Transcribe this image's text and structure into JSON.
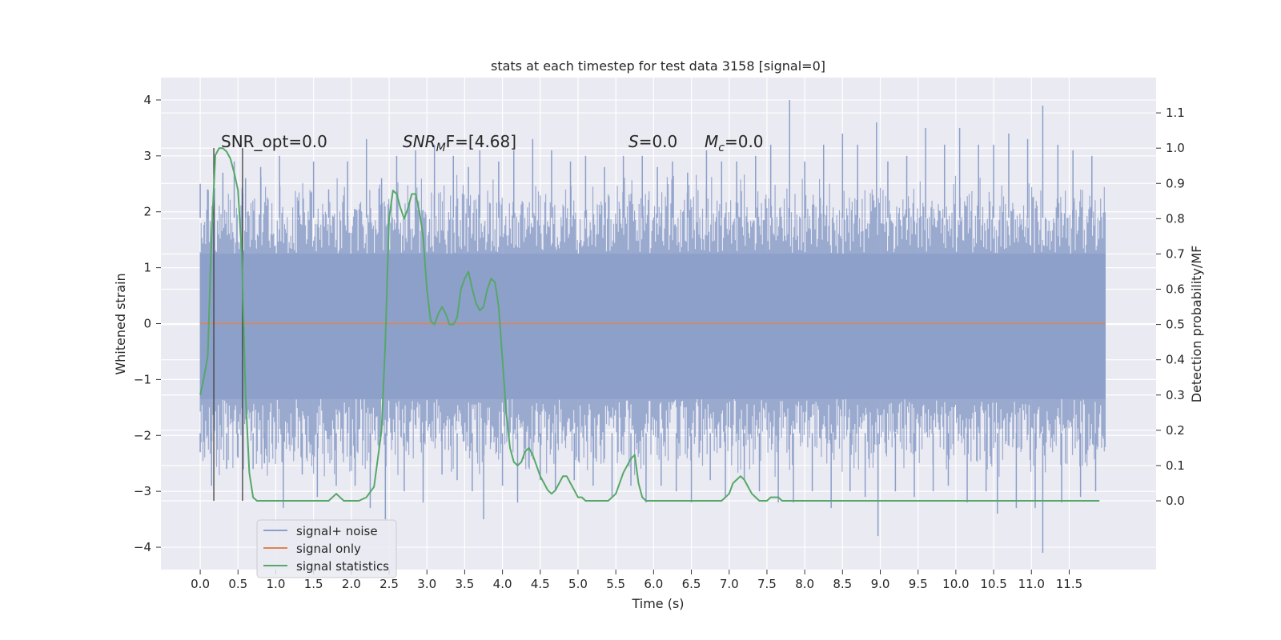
{
  "chart_data": {
    "type": "line",
    "title": "stats at each timestep for test data 3158 [signal=0]",
    "xlabel": "Time (s)",
    "ylabel": "Whitened strain",
    "y2label": "Detection probability/MF",
    "xlim": [
      -0.52,
      12.65
    ],
    "ylim": [
      -4.4,
      4.4
    ],
    "y2lim": [
      -0.195,
      1.2
    ],
    "grid": true,
    "legend_position": "lower-left",
    "x_ticks": [
      "0.0",
      "0.5",
      "1.0",
      "1.5",
      "2.0",
      "2.5",
      "3.0",
      "3.5",
      "4.0",
      "4.5",
      "5.0",
      "5.5",
      "6.0",
      "6.5",
      "7.0",
      "7.5",
      "8.0",
      "8.5",
      "9.0",
      "9.5",
      "10.0",
      "10.5",
      "11.0",
      "11.5"
    ],
    "y_ticks": [
      "4",
      "3",
      "2",
      "1",
      "0",
      "−1",
      "−2",
      "−3",
      "−4"
    ],
    "y2_ticks": [
      "1.1",
      "1.0",
      "0.9",
      "0.8",
      "0.7",
      "0.6",
      "0.5",
      "0.4",
      "0.3",
      "0.2",
      "0.1",
      "0.0"
    ],
    "annotations": {
      "snr_opt": "SNR_opt=0.0",
      "snr_mf_prefix": "SNR",
      "snr_mf_sub": "M",
      "snr_mf_suffix": "F=[4.68]",
      "s_label": "S",
      "s_value": "=0.0",
      "mc_label": "M",
      "mc_sub": "c",
      "mc_value": "=0.0"
    },
    "vertical_markers": [
      0.18,
      0.56
    ],
    "series": [
      {
        "name": "signal+ noise",
        "color": "#8c9fc9",
        "description_hidden": false,
        "envelope_core": [
          -1.35,
          1.25
        ],
        "envelope_typical": [
          -2.8,
          2.7
        ],
        "extremes": [
          {
            "x": 0.0,
            "y": 2.5
          },
          {
            "x": 0.0,
            "y": -2.3
          },
          {
            "x": 0.1,
            "y": 2.4
          },
          {
            "x": 0.15,
            "y": -2.9
          },
          {
            "x": 0.3,
            "y": 2.7
          },
          {
            "x": 0.35,
            "y": -2.6
          },
          {
            "x": 0.45,
            "y": 2.9
          },
          {
            "x": 0.5,
            "y": -2.4
          },
          {
            "x": 0.6,
            "y": 2.6
          },
          {
            "x": 0.7,
            "y": -2.6
          },
          {
            "x": 0.8,
            "y": 2.8
          },
          {
            "x": 0.85,
            "y": -2.5
          },
          {
            "x": 1.05,
            "y": 3.0
          },
          {
            "x": 1.1,
            "y": -3.3
          },
          {
            "x": 1.3,
            "y": 2.2
          },
          {
            "x": 1.35,
            "y": -2.7
          },
          {
            "x": 1.5,
            "y": 2.9
          },
          {
            "x": 1.55,
            "y": -3.1
          },
          {
            "x": 1.7,
            "y": 2.4
          },
          {
            "x": 1.8,
            "y": -2.9
          },
          {
            "x": 1.95,
            "y": 2.9
          },
          {
            "x": 2.05,
            "y": -2.9
          },
          {
            "x": 2.2,
            "y": 3.3
          },
          {
            "x": 2.25,
            "y": -3.3
          },
          {
            "x": 2.4,
            "y": 2.6
          },
          {
            "x": 2.45,
            "y": -3.5
          },
          {
            "x": 2.6,
            "y": 3.0
          },
          {
            "x": 2.7,
            "y": -3.0
          },
          {
            "x": 2.85,
            "y": 3.1
          },
          {
            "x": 2.95,
            "y": -3.2
          },
          {
            "x": 3.1,
            "y": 3.2
          },
          {
            "x": 3.2,
            "y": -2.7
          },
          {
            "x": 3.35,
            "y": 3.0
          },
          {
            "x": 3.4,
            "y": -2.8
          },
          {
            "x": 3.55,
            "y": 2.8
          },
          {
            "x": 3.6,
            "y": -3.0
          },
          {
            "x": 3.7,
            "y": 3.1
          },
          {
            "x": 3.75,
            "y": -3.5
          },
          {
            "x": 3.95,
            "y": 2.9
          },
          {
            "x": 4.0,
            "y": -2.9
          },
          {
            "x": 4.15,
            "y": 3.1
          },
          {
            "x": 4.2,
            "y": -3.2
          },
          {
            "x": 4.4,
            "y": 3.3
          },
          {
            "x": 4.5,
            "y": -2.8
          },
          {
            "x": 4.65,
            "y": 3.1
          },
          {
            "x": 4.7,
            "y": -3.0
          },
          {
            "x": 4.9,
            "y": 2.9
          },
          {
            "x": 4.95,
            "y": -2.8
          },
          {
            "x": 5.1,
            "y": 3.0
          },
          {
            "x": 5.2,
            "y": -2.9
          },
          {
            "x": 5.35,
            "y": 2.8
          },
          {
            "x": 5.45,
            "y": -3.1
          },
          {
            "x": 5.6,
            "y": 3.0
          },
          {
            "x": 5.7,
            "y": -2.9
          },
          {
            "x": 5.85,
            "y": 3.0
          },
          {
            "x": 5.9,
            "y": -3.2
          },
          {
            "x": 6.05,
            "y": 2.8
          },
          {
            "x": 6.1,
            "y": -2.9
          },
          {
            "x": 6.25,
            "y": 2.9
          },
          {
            "x": 6.3,
            "y": -3.0
          },
          {
            "x": 6.45,
            "y": 2.7
          },
          {
            "x": 6.5,
            "y": -3.2
          },
          {
            "x": 6.7,
            "y": 3.1
          },
          {
            "x": 6.75,
            "y": -2.8
          },
          {
            "x": 6.9,
            "y": 2.9
          },
          {
            "x": 6.95,
            "y": -3.1
          },
          {
            "x": 7.1,
            "y": 2.9
          },
          {
            "x": 7.2,
            "y": -2.8
          },
          {
            "x": 7.35,
            "y": 3.0
          },
          {
            "x": 7.4,
            "y": -3.0
          },
          {
            "x": 7.55,
            "y": 3.2
          },
          {
            "x": 7.65,
            "y": -3.2
          },
          {
            "x": 7.8,
            "y": 4.0
          },
          {
            "x": 7.85,
            "y": -3.2
          },
          {
            "x": 8.0,
            "y": 2.9
          },
          {
            "x": 8.1,
            "y": -3.0
          },
          {
            "x": 8.25,
            "y": 3.2
          },
          {
            "x": 8.35,
            "y": -3.3
          },
          {
            "x": 8.5,
            "y": 3.4
          },
          {
            "x": 8.6,
            "y": -3.0
          },
          {
            "x": 8.7,
            "y": 3.2
          },
          {
            "x": 8.8,
            "y": -3.1
          },
          {
            "x": 8.95,
            "y": 3.6
          },
          {
            "x": 8.97,
            "y": -3.8
          },
          {
            "x": 9.1,
            "y": 2.9
          },
          {
            "x": 9.2,
            "y": -3.0
          },
          {
            "x": 9.35,
            "y": 3.0
          },
          {
            "x": 9.45,
            "y": -3.1
          },
          {
            "x": 9.6,
            "y": 3.5
          },
          {
            "x": 9.7,
            "y": -3.0
          },
          {
            "x": 9.85,
            "y": 3.2
          },
          {
            "x": 9.9,
            "y": -2.9
          },
          {
            "x": 10.05,
            "y": 3.5
          },
          {
            "x": 10.15,
            "y": -3.2
          },
          {
            "x": 10.3,
            "y": 3.2
          },
          {
            "x": 10.4,
            "y": -3.0
          },
          {
            "x": 10.5,
            "y": 3.2
          },
          {
            "x": 10.55,
            "y": -3.4
          },
          {
            "x": 10.7,
            "y": 3.4
          },
          {
            "x": 10.8,
            "y": -3.3
          },
          {
            "x": 10.95,
            "y": 3.3
          },
          {
            "x": 11.05,
            "y": -3.3
          },
          {
            "x": 11.15,
            "y": 3.9
          },
          {
            "x": 11.15,
            "y": -4.1
          },
          {
            "x": 11.35,
            "y": 3.2
          },
          {
            "x": 11.4,
            "y": -3.2
          },
          {
            "x": 11.55,
            "y": 3.1
          },
          {
            "x": 11.65,
            "y": -3.1
          },
          {
            "x": 11.8,
            "y": 3.0
          },
          {
            "x": 11.85,
            "y": -3.0
          }
        ]
      },
      {
        "name": "signal only",
        "color": "#dd8452",
        "x": [
          0.0,
          11.98
        ],
        "y": [
          0.0,
          0.0
        ]
      },
      {
        "name": "signal statistics",
        "color": "#55a868",
        "axis": "right",
        "x": [
          0.0,
          0.05,
          0.1,
          0.15,
          0.2,
          0.25,
          0.3,
          0.35,
          0.4,
          0.45,
          0.5,
          0.55,
          0.6,
          0.65,
          0.7,
          0.75,
          0.8,
          0.9,
          1.0,
          1.2,
          1.5,
          1.7,
          1.8,
          1.9,
          2.0,
          2.1,
          2.2,
          2.3,
          2.4,
          2.45,
          2.5,
          2.55,
          2.6,
          2.65,
          2.7,
          2.75,
          2.8,
          2.85,
          2.9,
          2.95,
          3.0,
          3.05,
          3.1,
          3.15,
          3.2,
          3.25,
          3.3,
          3.35,
          3.4,
          3.45,
          3.5,
          3.55,
          3.6,
          3.65,
          3.7,
          3.75,
          3.8,
          3.85,
          3.9,
          3.95,
          4.0,
          4.05,
          4.1,
          4.15,
          4.2,
          4.25,
          4.3,
          4.35,
          4.4,
          4.45,
          4.5,
          4.55,
          4.6,
          4.65,
          4.7,
          4.75,
          4.8,
          4.85,
          4.9,
          4.95,
          5.0,
          5.05,
          5.1,
          5.15,
          5.2,
          5.25,
          5.3,
          5.4,
          5.5,
          5.6,
          5.7,
          5.75,
          5.8,
          5.85,
          5.9,
          5.95,
          6.0,
          6.05,
          6.1,
          6.15,
          6.2,
          6.3,
          6.5,
          6.7,
          6.9,
          7.0,
          7.05,
          7.1,
          7.15,
          7.2,
          7.25,
          7.3,
          7.35,
          7.4,
          7.45,
          7.5,
          7.55,
          7.6,
          7.65,
          7.7,
          7.8,
          8.0,
          9.0,
          10.0,
          11.0,
          11.3,
          11.5,
          11.7,
          11.9
        ],
        "y": [
          0.3,
          0.35,
          0.41,
          0.75,
          0.98,
          1.0,
          1.0,
          0.99,
          0.97,
          0.93,
          0.88,
          0.7,
          0.3,
          0.08,
          0.01,
          0.0,
          0.0,
          0.0,
          0.0,
          0.0,
          0.0,
          0.0,
          0.02,
          0.0,
          0.0,
          0.0,
          0.01,
          0.04,
          0.2,
          0.45,
          0.8,
          0.88,
          0.87,
          0.83,
          0.8,
          0.83,
          0.87,
          0.87,
          0.82,
          0.75,
          0.6,
          0.51,
          0.5,
          0.53,
          0.55,
          0.53,
          0.5,
          0.5,
          0.52,
          0.6,
          0.63,
          0.65,
          0.6,
          0.56,
          0.54,
          0.55,
          0.6,
          0.63,
          0.62,
          0.55,
          0.4,
          0.25,
          0.15,
          0.11,
          0.1,
          0.11,
          0.14,
          0.15,
          0.13,
          0.1,
          0.07,
          0.05,
          0.03,
          0.02,
          0.03,
          0.05,
          0.07,
          0.07,
          0.05,
          0.03,
          0.01,
          0.01,
          0.0,
          0.0,
          0.0,
          0.0,
          0.0,
          0.0,
          0.02,
          0.08,
          0.12,
          0.13,
          0.05,
          0.01,
          0.0,
          0.0,
          0.0,
          0.0,
          0.0,
          0.0,
          0.0,
          0.0,
          0.0,
          0.0,
          0.0,
          0.02,
          0.05,
          0.06,
          0.07,
          0.06,
          0.04,
          0.02,
          0.01,
          0.0,
          0.0,
          0.0,
          0.01,
          0.01,
          0.01,
          0.0,
          0.0,
          0.0,
          0.0,
          0.0,
          0.0,
          0.0,
          0.0,
          0.0,
          0.0
        ]
      }
    ],
    "legend": [
      {
        "label": "signal+ noise",
        "color": "#8c9fc9"
      },
      {
        "label": "signal only",
        "color": "#dd8452"
      },
      {
        "label": "signal statistics",
        "color": "#55a868"
      }
    ],
    "colors": {
      "plot_background": "#eaeaf2",
      "grid": "#ffffff",
      "marker": "#3f3f3f"
    }
  }
}
